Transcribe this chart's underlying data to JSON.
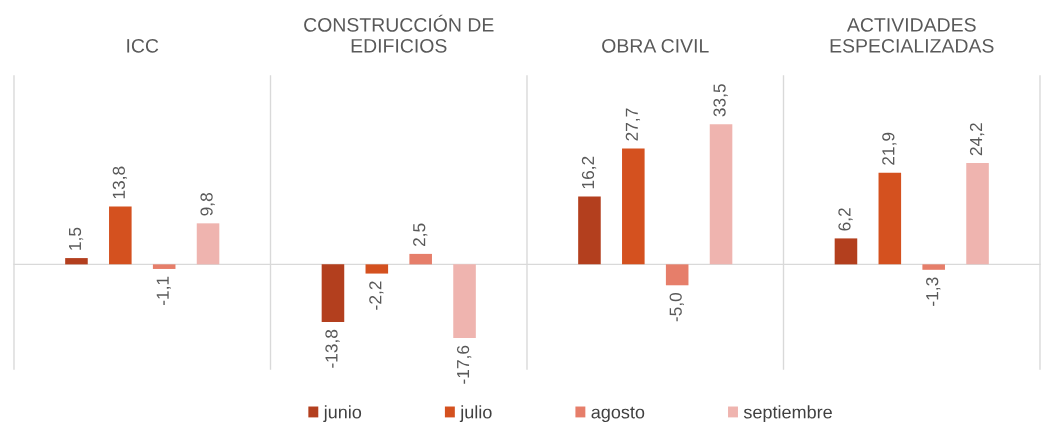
{
  "chart_data": {
    "type": "bar",
    "categories": [
      "ICC",
      "CONSTRUCCIÓN DE\nEDIFICIOS",
      "OBRA CIVIL",
      "ACTIVIDADES\nESPECIALIZADAS"
    ],
    "series": [
      {
        "name": "junio",
        "color": "#b33f1e",
        "values": [
          1.5,
          -13.8,
          16.2,
          6.2
        ],
        "value_labels": [
          "1,5",
          "-13,8",
          "16,2",
          "6,2"
        ]
      },
      {
        "name": "julio",
        "color": "#d4511f",
        "values": [
          13.8,
          -2.2,
          27.7,
          21.9
        ],
        "value_labels": [
          "13,8",
          "-2,2",
          "27,7",
          "21,9"
        ]
      },
      {
        "name": "agosto",
        "color": "#e67e6a",
        "values": [
          -1.1,
          2.5,
          -5.0,
          -1.3
        ],
        "value_labels": [
          "-1,1",
          "2,5",
          "-5,0",
          "-1,3"
        ]
      },
      {
        "name": "septiembre",
        "color": "#efb4af",
        "values": [
          9.8,
          -17.6,
          33.5,
          24.2
        ],
        "value_labels": [
          "9,8",
          "-17,6",
          "33,5",
          "24,2"
        ]
      }
    ],
    "ylim": [
      -25,
      45
    ],
    "grid": "x",
    "legend": "bottom",
    "tick_labels": "x"
  }
}
